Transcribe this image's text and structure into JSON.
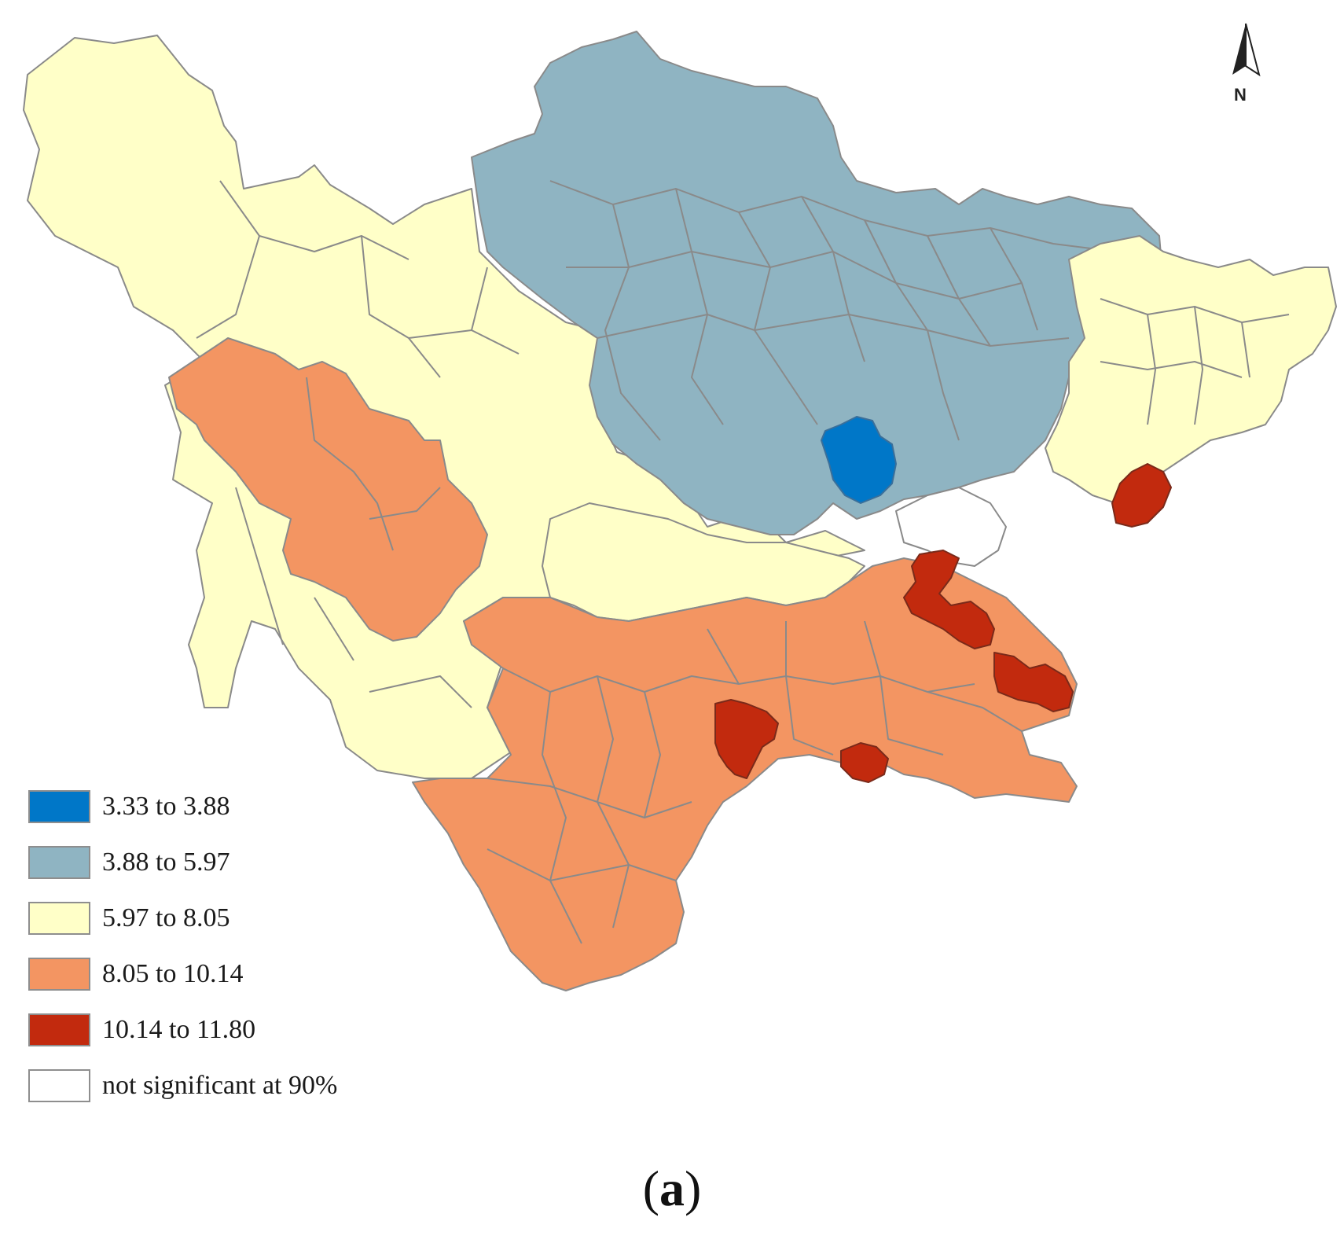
{
  "north_arrow": {
    "label": "N"
  },
  "legend": [
    {
      "label": "3.33 to 3.88",
      "color": "#0077c8"
    },
    {
      "label": "3.88 to 5.97",
      "color": "#8fb4c2"
    },
    {
      "label": "5.97 to 8.05",
      "color": "#ffffc8"
    },
    {
      "label": "8.05 to 10.14",
      "color": "#f39562"
    },
    {
      "label": "10.14 to 11.80",
      "color": "#c22a0e"
    },
    {
      "label": "not significant at 90%",
      "color": "#ffffff"
    }
  ],
  "caption": {
    "open": "(",
    "letter": "a",
    "close": ")"
  }
}
